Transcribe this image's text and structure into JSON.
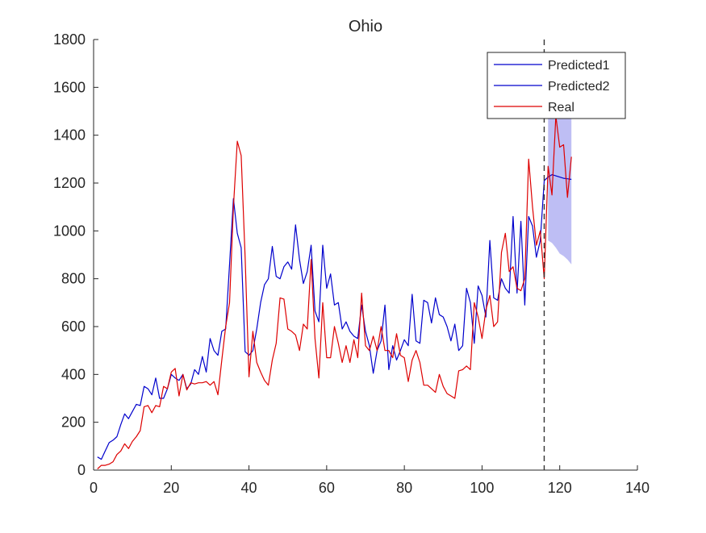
{
  "chart_data": {
    "type": "line",
    "title": "Ohio",
    "xlabel": "",
    "ylabel": "",
    "xlim": [
      0,
      140
    ],
    "ylim": [
      0,
      1800
    ],
    "xticks": [
      0,
      20,
      40,
      60,
      80,
      100,
      120,
      140
    ],
    "yticks": [
      0,
      200,
      400,
      600,
      800,
      1000,
      1200,
      1400,
      1600,
      1800
    ],
    "grid": false,
    "legend_position": "top-right",
    "vline_x": 116,
    "colors": {
      "predicted1": "#0000cc",
      "predicted2": "#0000cc",
      "real": "#dd0000",
      "band": "#b3b3f2",
      "vline": "#333333"
    },
    "series": [
      {
        "name": "Predicted1",
        "x": [
          1,
          2,
          3,
          4,
          5,
          6,
          7,
          8,
          9,
          10,
          11,
          12,
          13,
          14,
          15,
          16,
          17,
          18,
          19,
          20,
          21,
          22,
          23,
          24,
          25,
          26,
          27,
          28,
          29,
          30,
          31,
          32,
          33,
          34,
          35,
          36,
          37,
          38,
          39,
          40,
          41,
          42,
          43,
          44,
          45,
          46,
          47,
          48,
          49,
          50,
          51,
          52,
          53,
          54,
          55,
          56,
          57,
          58,
          59,
          60,
          61,
          62,
          63,
          64,
          65,
          66,
          67,
          68,
          69,
          70,
          71,
          72,
          73,
          74,
          75,
          76,
          77,
          78,
          79,
          80,
          81,
          82,
          83,
          84,
          85,
          86,
          87,
          88,
          89,
          90,
          91,
          92,
          93,
          94,
          95,
          96,
          97,
          98,
          99,
          100,
          101,
          102,
          103,
          104,
          105,
          106,
          107,
          108,
          109,
          110,
          111,
          112,
          113,
          114,
          115,
          116
        ],
        "values": [
          55,
          45,
          80,
          115,
          125,
          140,
          190,
          235,
          215,
          245,
          275,
          270,
          350,
          340,
          315,
          385,
          300,
          300,
          340,
          400,
          385,
          375,
          400,
          340,
          360,
          420,
          400,
          475,
          410,
          550,
          500,
          480,
          580,
          590,
          860,
          1135,
          990,
          930,
          495,
          480,
          500,
          590,
          700,
          775,
          800,
          935,
          810,
          800,
          850,
          870,
          840,
          1025,
          880,
          780,
          830,
          940,
          665,
          620,
          940,
          760,
          820,
          690,
          700,
          590,
          620,
          580,
          560,
          550,
          690,
          580,
          520,
          405,
          500,
          540,
          690,
          420,
          520,
          460,
          500,
          545,
          520,
          735,
          540,
          530,
          710,
          700,
          615,
          720,
          650,
          640,
          600,
          540,
          610,
          500,
          520,
          760,
          700,
          530,
          770,
          730,
          640,
          960,
          720,
          710,
          800,
          760,
          740,
          1060,
          740,
          1040,
          690,
          1060,
          1020,
          890,
          960,
          1210
        ]
      },
      {
        "name": "Predicted2",
        "x": [
          116,
          117,
          118,
          119,
          120,
          121,
          122,
          123
        ],
        "values": [
          1210,
          1225,
          1235,
          1230,
          1225,
          1220,
          1218,
          1215
        ]
      },
      {
        "name": "Real",
        "x": [
          1,
          2,
          3,
          4,
          5,
          6,
          7,
          8,
          9,
          10,
          11,
          12,
          13,
          14,
          15,
          16,
          17,
          18,
          19,
          20,
          21,
          22,
          23,
          24,
          25,
          26,
          27,
          28,
          29,
          30,
          31,
          32,
          33,
          34,
          35,
          36,
          37,
          38,
          39,
          40,
          41,
          42,
          43,
          44,
          45,
          46,
          47,
          48,
          49,
          50,
          51,
          52,
          53,
          54,
          55,
          56,
          57,
          58,
          59,
          60,
          61,
          62,
          63,
          64,
          65,
          66,
          67,
          68,
          69,
          70,
          71,
          72,
          73,
          74,
          75,
          76,
          77,
          78,
          79,
          80,
          81,
          82,
          83,
          84,
          85,
          86,
          87,
          88,
          89,
          90,
          91,
          92,
          93,
          94,
          95,
          96,
          97,
          98,
          99,
          100,
          101,
          102,
          103,
          104,
          105,
          106,
          107,
          108,
          109,
          110,
          111,
          112,
          113,
          114,
          115,
          116,
          117,
          118,
          119,
          120,
          121,
          122,
          123
        ],
        "values": [
          5,
          20,
          20,
          25,
          35,
          65,
          80,
          110,
          90,
          120,
          140,
          165,
          265,
          270,
          240,
          270,
          265,
          350,
          340,
          410,
          425,
          310,
          400,
          335,
          365,
          360,
          365,
          365,
          370,
          355,
          370,
          315,
          460,
          600,
          700,
          1100,
          1375,
          1315,
          890,
          390,
          580,
          450,
          410,
          375,
          355,
          460,
          530,
          720,
          715,
          590,
          580,
          565,
          500,
          610,
          590,
          880,
          550,
          385,
          700,
          470,
          470,
          600,
          530,
          450,
          520,
          450,
          545,
          470,
          740,
          520,
          500,
          560,
          500,
          600,
          500,
          500,
          470,
          570,
          480,
          470,
          370,
          460,
          500,
          450,
          355,
          355,
          340,
          325,
          400,
          350,
          320,
          310,
          300,
          415,
          420,
          435,
          420,
          700,
          640,
          550,
          670,
          730,
          600,
          620,
          910,
          990,
          830,
          850,
          760,
          750,
          800,
          1300,
          1100,
          940,
          1000,
          800,
          1270,
          1150,
          1480,
          1350,
          1360,
          1140,
          1310
        ]
      }
    ],
    "band": {
      "x": [
        117,
        118,
        119,
        120,
        121,
        122,
        123
      ],
      "upper": [
        1470,
        1470,
        1470,
        1470,
        1470,
        1470,
        1470
      ],
      "lower": [
        960,
        950,
        930,
        905,
        895,
        880,
        860
      ]
    }
  }
}
